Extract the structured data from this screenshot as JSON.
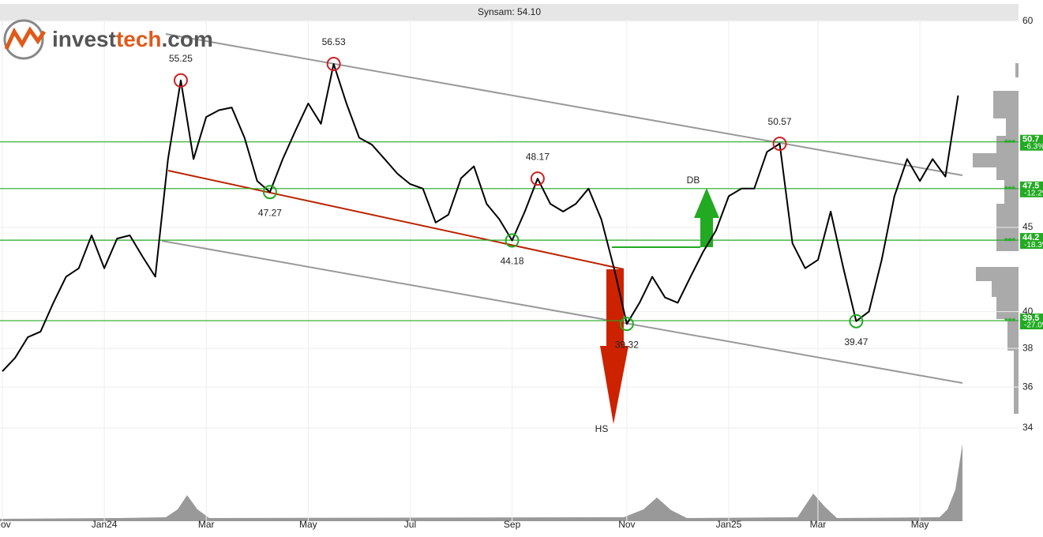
{
  "chart_data": {
    "type": "line",
    "title": "Synsam: 54.10",
    "logo": [
      "invest",
      "tech",
      ".com"
    ],
    "log_scale": true,
    "grid": true,
    "ylim": [
      34,
      60
    ],
    "yticks": [
      60,
      45,
      40,
      38,
      36,
      34
    ],
    "categories": [
      "Nov",
      null,
      null,
      null,
      null,
      null,
      null,
      null,
      "Jan24",
      null,
      null,
      null,
      null,
      null,
      null,
      null,
      "Mar",
      null,
      null,
      null,
      null,
      null,
      null,
      null,
      "May",
      null,
      null,
      null,
      null,
      null,
      null,
      null,
      "Jul",
      null,
      null,
      null,
      null,
      null,
      null,
      null,
      "Sep",
      null,
      null,
      null,
      null,
      null,
      null,
      null,
      null,
      "Nov",
      null,
      null,
      null,
      null,
      null,
      null,
      null,
      "Jan25",
      null,
      null,
      null,
      null,
      null,
      null,
      "Mar",
      null,
      null,
      null,
      null,
      null,
      null,
      null,
      "May",
      null,
      null,
      null
    ],
    "series": [
      {
        "color": "#000000",
        "values": [
          36.8,
          37.5,
          38.6,
          38.9,
          40.5,
          42.0,
          42.5,
          44.5,
          42.5,
          44.3,
          44.5,
          43.2,
          42.0,
          49.5,
          55.25,
          49.5,
          52.5,
          53.0,
          53.2,
          51.0,
          48.0,
          47.27,
          49.5,
          51.5,
          53.5,
          52.0,
          56.53,
          53.5,
          51.0,
          50.5,
          49.5,
          48.5,
          47.8,
          47.5,
          45.3,
          45.8,
          48.2,
          49.0,
          46.5,
          45.5,
          44.18,
          46.0,
          48.17,
          46.5,
          46.0,
          46.5,
          47.5,
          45.5,
          42.5,
          39.32,
          40.5,
          42.0,
          40.8,
          40.5,
          42.0,
          43.5,
          44.8,
          47.0,
          47.5,
          47.5,
          50.0,
          50.57,
          44.0,
          42.5,
          43.0,
          46.0,
          42.5,
          39.47,
          40.0,
          43.0,
          47.0,
          49.5,
          48.0,
          49.5,
          48.3,
          54.1
        ]
      }
    ],
    "extremes": [
      {
        "value": 55.25,
        "color": "#cc2222"
      },
      {
        "value": 56.53,
        "color": "#cc2222"
      },
      {
        "value": 48.17,
        "color": "#cc2222"
      },
      {
        "value": 50.57,
        "color": "#cc2222"
      },
      {
        "value": 47.27,
        "color": "#22aa22"
      },
      {
        "value": 44.18,
        "color": "#22aa22"
      },
      {
        "value": 39.32,
        "color": "#22aa22"
      },
      {
        "value": 39.47,
        "color": "#22aa22"
      }
    ],
    "levels": [
      {
        "value": 50.7,
        "change": "-6.3%"
      },
      {
        "value": 47.5,
        "change": "-12.2%"
      },
      {
        "value": 44.2,
        "change": "-18.3%"
      },
      {
        "value": 39.5,
        "change": "-27.0%"
      }
    ],
    "level_color": "#22aa22",
    "patterns": [
      "HS",
      "DB"
    ]
  }
}
